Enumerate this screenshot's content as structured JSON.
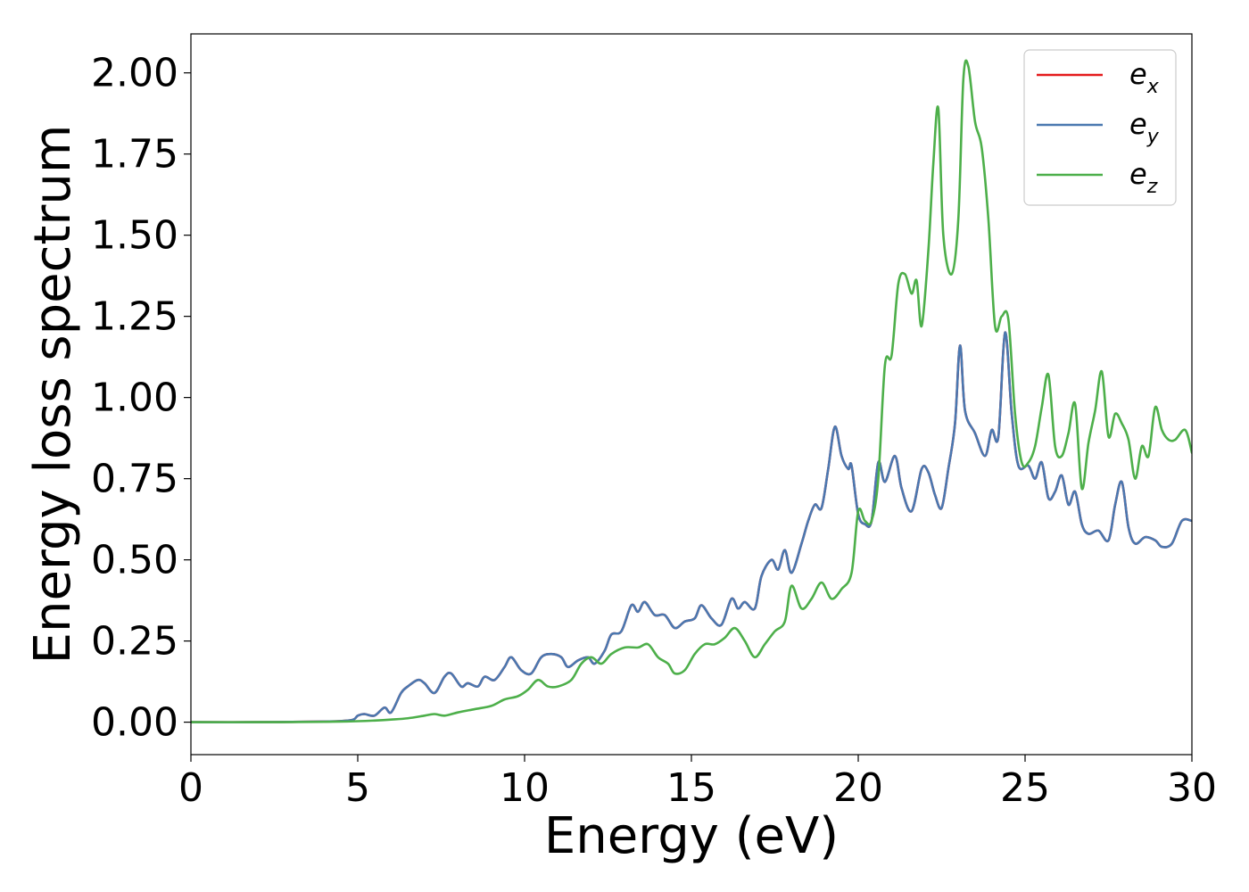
{
  "chart_data": {
    "type": "line",
    "xlabel": "Energy (eV)",
    "ylabel": "Energy loss spectrum",
    "xlim": [
      0,
      30
    ],
    "ylim": [
      -0.1,
      2.12
    ],
    "x_ticks": [
      "0",
      "5",
      "10",
      "15",
      "20",
      "25",
      "30"
    ],
    "y_ticks": [
      "0.00",
      "0.25",
      "0.50",
      "0.75",
      "1.00",
      "1.25",
      "1.50",
      "1.75",
      "2.00"
    ],
    "grid": false,
    "legend_position": "top-right",
    "series": [
      {
        "name": "e",
        "subscript": "x",
        "color": "#e41a1c",
        "x": [
          0,
          2,
          4,
          4.8,
          5.0,
          5.2,
          5.5,
          5.8,
          6.0,
          6.3,
          6.5,
          6.8,
          7.0,
          7.3,
          7.6,
          7.8,
          8.1,
          8.3,
          8.6,
          8.8,
          9.1,
          9.4,
          9.6,
          9.9,
          10.2,
          10.5,
          10.8,
          11.1,
          11.3,
          11.6,
          11.9,
          12.1,
          12.4,
          12.6,
          12.9,
          13.2,
          13.4,
          13.6,
          13.9,
          14.2,
          14.5,
          14.8,
          15.1,
          15.3,
          15.6,
          15.9,
          16.2,
          16.4,
          16.6,
          16.9,
          17.1,
          17.4,
          17.6,
          17.8,
          18.0,
          18.3,
          18.5,
          18.7,
          18.9,
          19.1,
          19.3,
          19.5,
          19.7,
          19.8,
          20.0,
          20.2,
          20.4,
          20.6,
          20.8,
          21.1,
          21.3,
          21.6,
          21.9,
          22.1,
          22.3,
          22.5,
          22.7,
          22.9,
          23.05,
          23.2,
          23.5,
          23.8,
          24.0,
          24.2,
          24.4,
          24.6,
          24.8,
          25.1,
          25.3,
          25.5,
          25.7,
          25.9,
          26.1,
          26.3,
          26.5,
          26.7,
          26.9,
          27.2,
          27.5,
          27.7,
          27.9,
          28.1,
          28.3,
          28.6,
          28.9,
          29.1,
          29.4,
          29.7,
          30
        ],
        "values": [
          0.0,
          0.0,
          0.002,
          0.006,
          0.02,
          0.025,
          0.02,
          0.045,
          0.03,
          0.09,
          0.11,
          0.13,
          0.12,
          0.09,
          0.14,
          0.15,
          0.11,
          0.12,
          0.11,
          0.14,
          0.13,
          0.17,
          0.2,
          0.16,
          0.15,
          0.2,
          0.21,
          0.2,
          0.17,
          0.19,
          0.2,
          0.18,
          0.22,
          0.27,
          0.28,
          0.36,
          0.34,
          0.37,
          0.33,
          0.33,
          0.29,
          0.31,
          0.32,
          0.36,
          0.32,
          0.3,
          0.38,
          0.35,
          0.37,
          0.35,
          0.45,
          0.5,
          0.47,
          0.53,
          0.46,
          0.55,
          0.62,
          0.67,
          0.66,
          0.78,
          0.91,
          0.82,
          0.78,
          0.79,
          0.64,
          0.61,
          0.62,
          0.8,
          0.74,
          0.82,
          0.72,
          0.65,
          0.78,
          0.77,
          0.7,
          0.66,
          0.78,
          0.92,
          1.16,
          0.96,
          0.89,
          0.82,
          0.9,
          0.88,
          1.2,
          0.95,
          0.79,
          0.79,
          0.75,
          0.8,
          0.69,
          0.71,
          0.76,
          0.67,
          0.71,
          0.61,
          0.58,
          0.59,
          0.56,
          0.67,
          0.74,
          0.6,
          0.55,
          0.57,
          0.56,
          0.54,
          0.55,
          0.62,
          0.62
        ]
      },
      {
        "name": "e",
        "subscript": "y",
        "color": "#4a78b0",
        "x": [
          0,
          2,
          4,
          4.8,
          5.0,
          5.2,
          5.5,
          5.8,
          6.0,
          6.3,
          6.5,
          6.8,
          7.0,
          7.3,
          7.6,
          7.8,
          8.1,
          8.3,
          8.6,
          8.8,
          9.1,
          9.4,
          9.6,
          9.9,
          10.2,
          10.5,
          10.8,
          11.1,
          11.3,
          11.6,
          11.9,
          12.1,
          12.4,
          12.6,
          12.9,
          13.2,
          13.4,
          13.6,
          13.9,
          14.2,
          14.5,
          14.8,
          15.1,
          15.3,
          15.6,
          15.9,
          16.2,
          16.4,
          16.6,
          16.9,
          17.1,
          17.4,
          17.6,
          17.8,
          18.0,
          18.3,
          18.5,
          18.7,
          18.9,
          19.1,
          19.3,
          19.5,
          19.7,
          19.8,
          20.0,
          20.2,
          20.4,
          20.6,
          20.8,
          21.1,
          21.3,
          21.6,
          21.9,
          22.1,
          22.3,
          22.5,
          22.7,
          22.9,
          23.05,
          23.2,
          23.5,
          23.8,
          24.0,
          24.2,
          24.4,
          24.6,
          24.8,
          25.1,
          25.3,
          25.5,
          25.7,
          25.9,
          26.1,
          26.3,
          26.5,
          26.7,
          26.9,
          27.2,
          27.5,
          27.7,
          27.9,
          28.1,
          28.3,
          28.6,
          28.9,
          29.1,
          29.4,
          29.7,
          30
        ],
        "values": [
          0.0,
          0.0,
          0.002,
          0.006,
          0.02,
          0.025,
          0.02,
          0.045,
          0.03,
          0.09,
          0.11,
          0.13,
          0.12,
          0.09,
          0.14,
          0.15,
          0.11,
          0.12,
          0.11,
          0.14,
          0.13,
          0.17,
          0.2,
          0.16,
          0.15,
          0.2,
          0.21,
          0.2,
          0.17,
          0.19,
          0.2,
          0.18,
          0.22,
          0.27,
          0.28,
          0.36,
          0.34,
          0.37,
          0.33,
          0.33,
          0.29,
          0.31,
          0.32,
          0.36,
          0.32,
          0.3,
          0.38,
          0.35,
          0.37,
          0.35,
          0.45,
          0.5,
          0.47,
          0.53,
          0.46,
          0.55,
          0.62,
          0.67,
          0.66,
          0.78,
          0.91,
          0.82,
          0.78,
          0.79,
          0.64,
          0.61,
          0.62,
          0.8,
          0.74,
          0.82,
          0.72,
          0.65,
          0.78,
          0.77,
          0.7,
          0.66,
          0.78,
          0.92,
          1.16,
          0.96,
          0.89,
          0.82,
          0.9,
          0.88,
          1.2,
          0.95,
          0.79,
          0.79,
          0.75,
          0.8,
          0.69,
          0.71,
          0.76,
          0.67,
          0.71,
          0.61,
          0.58,
          0.59,
          0.56,
          0.67,
          0.74,
          0.6,
          0.55,
          0.57,
          0.56,
          0.54,
          0.55,
          0.62,
          0.62
        ]
      },
      {
        "name": "e",
        "subscript": "z",
        "color": "#4daf4a",
        "x": [
          0,
          2,
          4,
          5,
          5.5,
          6,
          6.5,
          7,
          7.3,
          7.6,
          8,
          8.5,
          9,
          9.4,
          9.8,
          10.1,
          10.4,
          10.7,
          11,
          11.4,
          11.7,
          12,
          12.3,
          12.6,
          13,
          13.4,
          13.7,
          14,
          14.3,
          14.5,
          14.8,
          15.1,
          15.4,
          15.7,
          16.0,
          16.3,
          16.6,
          16.9,
          17.2,
          17.5,
          17.8,
          18.0,
          18.3,
          18.6,
          18.9,
          19.2,
          19.5,
          19.8,
          20.0,
          20.2,
          20.4,
          20.6,
          20.8,
          21.0,
          21.2,
          21.4,
          21.6,
          21.75,
          21.9,
          22.1,
          22.25,
          22.4,
          22.55,
          22.8,
          23.0,
          23.15,
          23.3,
          23.5,
          23.7,
          23.9,
          24.1,
          24.3,
          24.5,
          24.7,
          24.9,
          25.1,
          25.3,
          25.5,
          25.7,
          25.9,
          26.1,
          26.3,
          26.5,
          26.7,
          26.9,
          27.1,
          27.3,
          27.5,
          27.7,
          27.9,
          28.1,
          28.3,
          28.5,
          28.7,
          28.9,
          29.1,
          29.3,
          29.5,
          29.8,
          30
        ],
        "values": [
          0.0,
          0.0,
          0.001,
          0.003,
          0.005,
          0.008,
          0.012,
          0.02,
          0.025,
          0.02,
          0.03,
          0.04,
          0.05,
          0.07,
          0.08,
          0.1,
          0.13,
          0.11,
          0.11,
          0.13,
          0.18,
          0.2,
          0.18,
          0.21,
          0.23,
          0.23,
          0.24,
          0.2,
          0.18,
          0.15,
          0.16,
          0.21,
          0.24,
          0.24,
          0.26,
          0.29,
          0.25,
          0.2,
          0.24,
          0.28,
          0.31,
          0.42,
          0.35,
          0.38,
          0.43,
          0.38,
          0.41,
          0.46,
          0.65,
          0.62,
          0.62,
          0.75,
          1.1,
          1.13,
          1.35,
          1.38,
          1.32,
          1.36,
          1.22,
          1.45,
          1.72,
          1.89,
          1.5,
          1.38,
          1.55,
          1.98,
          2.02,
          1.85,
          1.77,
          1.55,
          1.22,
          1.25,
          1.24,
          0.95,
          0.8,
          0.8,
          0.85,
          0.97,
          1.07,
          0.85,
          0.82,
          0.89,
          0.98,
          0.72,
          0.86,
          0.96,
          1.08,
          0.88,
          0.95,
          0.92,
          0.87,
          0.75,
          0.85,
          0.82,
          0.97,
          0.9,
          0.87,
          0.87,
          0.9,
          0.83
        ]
      }
    ]
  }
}
